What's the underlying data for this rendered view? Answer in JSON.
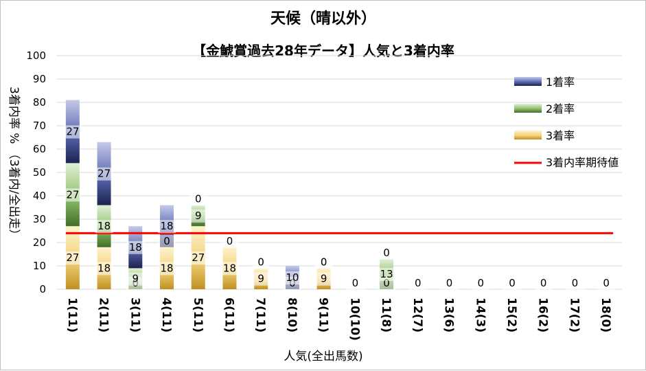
{
  "chart_data": {
    "type": "bar",
    "stacked": true,
    "title": "天候（晴以外）",
    "subtitle": "【金鯱賞過去28年データ】人気と3着内率",
    "xlabel": "人気(全出馬数)",
    "ylabel": "3着内率 %  （3着内/全出走）",
    "ylim": [
      0,
      100
    ],
    "yticks": [
      0,
      10,
      20,
      30,
      40,
      50,
      60,
      70,
      80,
      90,
      100
    ],
    "grid": true,
    "legend_position": "right",
    "categories": [
      "1(11)",
      "2(11)",
      "3(11)",
      "4(11)",
      "5(11)",
      "6(11)",
      "7(11)",
      "8(10)",
      "9(11)",
      "10(10)",
      "11(8)",
      "12(7)",
      "13(6)",
      "14(3)",
      "15(2)",
      "16(2)",
      "17(2)",
      "18(0)"
    ],
    "series": [
      {
        "name": "3着率",
        "color": "#c9a227",
        "values": [
          27,
          18,
          0,
          18,
          27,
          18,
          9,
          0,
          9,
          0,
          0,
          0,
          0,
          0,
          0,
          0,
          0,
          0
        ],
        "labels": [
          "27",
          "18",
          "0",
          "18",
          "27",
          "18",
          "9",
          "0",
          "9",
          "0",
          "0",
          "0",
          "0",
          "0",
          "0",
          "0",
          "0",
          "0"
        ]
      },
      {
        "name": "2着率",
        "color": "#548235",
        "values": [
          27,
          18,
          9,
          0,
          9,
          0,
          0,
          0,
          0,
          0,
          13,
          0,
          0,
          0,
          0,
          0,
          0,
          0
        ],
        "labels": [
          "27",
          "18",
          "9",
          "0",
          "9",
          "",
          "",
          "",
          "0",
          "",
          "13",
          "",
          "",
          "",
          "",
          "",
          "",
          ""
        ]
      },
      {
        "name": "1着率",
        "color": "#2f3f7f",
        "values": [
          27,
          27,
          18,
          18,
          0,
          0,
          0,
          10,
          0,
          0,
          0,
          0,
          0,
          0,
          0,
          0,
          0,
          0
        ],
        "labels": [
          "27",
          "27",
          "18",
          "18",
          "0",
          "0",
          "0",
          "10",
          "0",
          "",
          "0",
          "",
          "",
          "",
          "",
          "",
          "",
          ""
        ]
      }
    ],
    "reference_line": {
      "name": "3着内率期待値",
      "value": 24,
      "color": "#ff0000"
    }
  }
}
